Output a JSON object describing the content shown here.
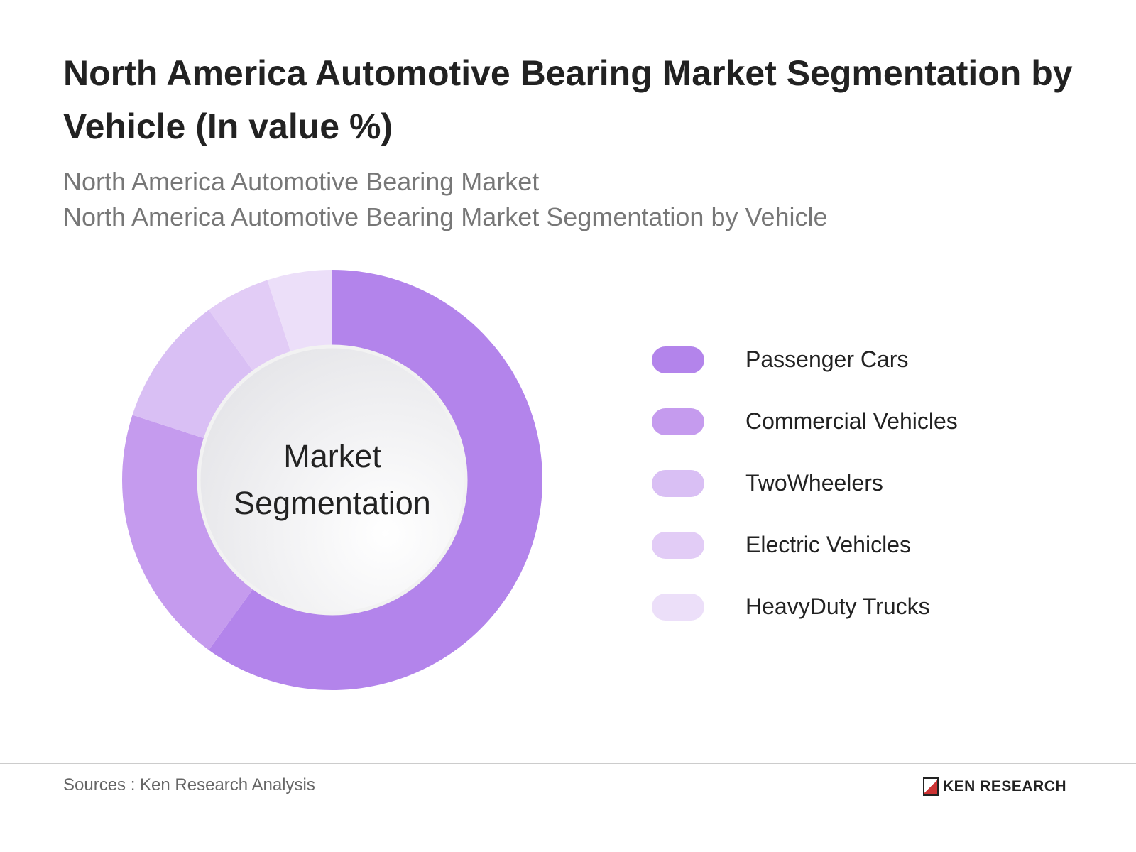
{
  "title": "North America Automotive Bearing Market Segmentation by Vehicle (In value %)",
  "subtitle_1": "North America Automotive Bearing Market",
  "subtitle_2": "North America Automotive Bearing Market Segmentation by Vehicle",
  "chart_data": {
    "type": "pie",
    "variant": "donut",
    "center_label_line1": "Market",
    "center_label_line2": "Segmentation",
    "categories": [
      "Passenger Cars",
      "Commercial Vehicles",
      "TwoWheelers",
      "Electric Vehicles",
      "HeavyDuty Trucks"
    ],
    "values": [
      60,
      20,
      10,
      5,
      5
    ],
    "unit": "%",
    "colors": [
      "#b384eb",
      "#c59bee",
      "#d9bff4",
      "#e2ccf6",
      "#ecdff9"
    ],
    "legend_position": "right"
  },
  "footer": {
    "source": "Sources : Ken Research Analysis",
    "logo_text": "KEN RESEARCH"
  }
}
